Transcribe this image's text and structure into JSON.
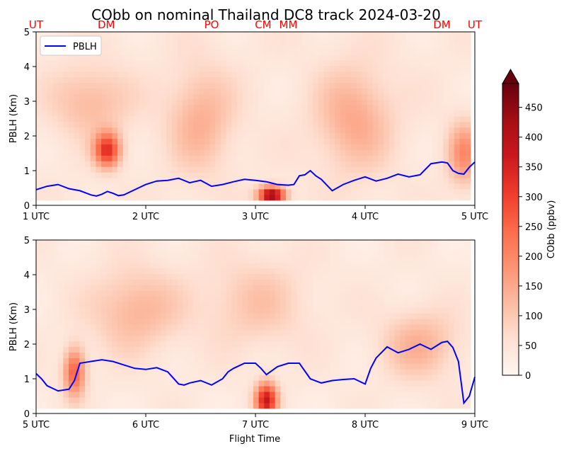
{
  "title": "CObb on nominal Thailand DC8 track 2024-03-20",
  "colors": {
    "pblh_line": "#0000ff",
    "site_label": "#ff0000",
    "cmap": [
      "#fff5f0",
      "#fee0d2",
      "#fcbba1",
      "#fc9272",
      "#fb6a4a",
      "#ef3b2c",
      "#cb181d",
      "#a50f15",
      "#67000d"
    ]
  },
  "site_labels": [
    {
      "text": "UT",
      "x": 1.0
    },
    {
      "text": "DM",
      "x": 1.64
    },
    {
      "text": "PO",
      "x": 2.6
    },
    {
      "text": "CM",
      "x": 3.07
    },
    {
      "text": "MM",
      "x": 3.3
    },
    {
      "text": "DM",
      "x": 4.7
    },
    {
      "text": "UT",
      "x": 5.0
    }
  ],
  "colorbar": {
    "label": "CObb (ppbv)",
    "vmin": 0,
    "vmax": 490,
    "ticks": [
      "0",
      "50",
      "100",
      "150",
      "200",
      "250",
      "300",
      "350",
      "400",
      "450"
    ],
    "extend": "max"
  },
  "chart_data": [
    {
      "type": "heatmap",
      "ylabel": "PBLH (Km)",
      "xlabel": "",
      "xlim": [
        1,
        5
      ],
      "ylim": [
        0,
        5
      ],
      "xticks": [
        "1 UTC",
        "2 UTC",
        "3 UTC",
        "4 UTC",
        "5 UTC"
      ],
      "yticks": [
        "0",
        "1",
        "2",
        "3",
        "4",
        "5"
      ],
      "legend": {
        "position": "top-left",
        "entries": [
          "PBLH"
        ]
      },
      "pblh_series": {
        "name": "PBLH",
        "x": [
          1.0,
          1.1,
          1.2,
          1.3,
          1.4,
          1.5,
          1.55,
          1.6,
          1.65,
          1.7,
          1.75,
          1.8,
          1.9,
          2.0,
          2.1,
          2.2,
          2.3,
          2.4,
          2.5,
          2.6,
          2.7,
          2.8,
          2.9,
          3.0,
          3.1,
          3.2,
          3.3,
          3.35,
          3.4,
          3.45,
          3.5,
          3.55,
          3.6,
          3.7,
          3.8,
          3.9,
          4.0,
          4.1,
          4.2,
          4.3,
          4.4,
          4.5,
          4.6,
          4.7,
          4.75,
          4.8,
          4.85,
          4.9,
          4.95,
          5.0
        ],
        "y": [
          0.45,
          0.55,
          0.6,
          0.48,
          0.42,
          0.3,
          0.27,
          0.32,
          0.4,
          0.35,
          0.28,
          0.3,
          0.45,
          0.6,
          0.7,
          0.72,
          0.78,
          0.65,
          0.72,
          0.55,
          0.6,
          0.68,
          0.75,
          0.72,
          0.68,
          0.6,
          0.58,
          0.6,
          0.85,
          0.88,
          1.0,
          0.85,
          0.75,
          0.42,
          0.6,
          0.72,
          0.82,
          0.7,
          0.78,
          0.9,
          0.82,
          0.88,
          1.2,
          1.25,
          1.22,
          1.0,
          0.92,
          0.9,
          1.1,
          1.25
        ]
      },
      "cobb_blobs": [
        {
          "x": 1.65,
          "y": 1.6,
          "sx": 0.12,
          "sy": 0.5,
          "v": 280
        },
        {
          "x": 3.15,
          "y": 0.3,
          "sx": 0.12,
          "sy": 0.25,
          "v": 420
        },
        {
          "x": 4.9,
          "y": 1.5,
          "sx": 0.15,
          "sy": 0.9,
          "v": 150
        },
        {
          "x": 1.5,
          "y": 3.0,
          "sx": 0.35,
          "sy": 1.0,
          "v": 90
        },
        {
          "x": 2.5,
          "y": 2.5,
          "sx": 0.3,
          "sy": 1.5,
          "v": 100
        },
        {
          "x": 3.9,
          "y": 2.5,
          "sx": 0.35,
          "sy": 1.5,
          "v": 110
        }
      ],
      "cobb_background": 40
    },
    {
      "type": "heatmap",
      "ylabel": "PBLH (Km)",
      "xlabel": "Flight Time",
      "xlim": [
        5,
        9
      ],
      "ylim": [
        0,
        5
      ],
      "xticks": [
        "5 UTC",
        "6 UTC",
        "7 UTC",
        "8 UTC",
        "9 UTC"
      ],
      "yticks": [
        "0",
        "1",
        "2",
        "3",
        "4",
        "5"
      ],
      "pblh_series": {
        "name": "PBLH",
        "x": [
          5.0,
          5.05,
          5.1,
          5.2,
          5.3,
          5.35,
          5.4,
          5.5,
          5.6,
          5.7,
          5.8,
          5.9,
          6.0,
          6.1,
          6.2,
          6.3,
          6.35,
          6.4,
          6.5,
          6.6,
          6.7,
          6.75,
          6.8,
          6.9,
          7.0,
          7.05,
          7.1,
          7.2,
          7.3,
          7.4,
          7.5,
          7.6,
          7.7,
          7.8,
          7.9,
          8.0,
          8.05,
          8.1,
          8.2,
          8.3,
          8.4,
          8.5,
          8.6,
          8.7,
          8.75,
          8.8,
          8.85,
          8.9,
          8.95,
          9.0
        ],
        "y": [
          1.15,
          1.0,
          0.8,
          0.65,
          0.7,
          0.95,
          1.45,
          1.5,
          1.55,
          1.5,
          1.4,
          1.3,
          1.27,
          1.32,
          1.2,
          0.85,
          0.82,
          0.88,
          0.95,
          0.82,
          1.0,
          1.2,
          1.3,
          1.45,
          1.45,
          1.3,
          1.12,
          1.35,
          1.45,
          1.45,
          1.0,
          0.88,
          0.95,
          0.98,
          1.0,
          0.85,
          1.3,
          1.6,
          1.92,
          1.75,
          1.85,
          2.0,
          1.85,
          2.05,
          2.08,
          1.9,
          1.5,
          0.3,
          0.5,
          1.05
        ]
      },
      "cobb_blobs": [
        {
          "x": 5.35,
          "y": 1.2,
          "sx": 0.1,
          "sy": 0.7,
          "v": 230
        },
        {
          "x": 7.1,
          "y": 0.4,
          "sx": 0.1,
          "sy": 0.5,
          "v": 330
        },
        {
          "x": 5.9,
          "y": 3.0,
          "sx": 0.4,
          "sy": 1.2,
          "v": 100
        },
        {
          "x": 8.5,
          "y": 2.0,
          "sx": 0.35,
          "sy": 1.0,
          "v": 100
        },
        {
          "x": 7.0,
          "y": 3.2,
          "sx": 0.5,
          "sy": 1.3,
          "v": 70
        }
      ],
      "cobb_background": 35
    }
  ]
}
